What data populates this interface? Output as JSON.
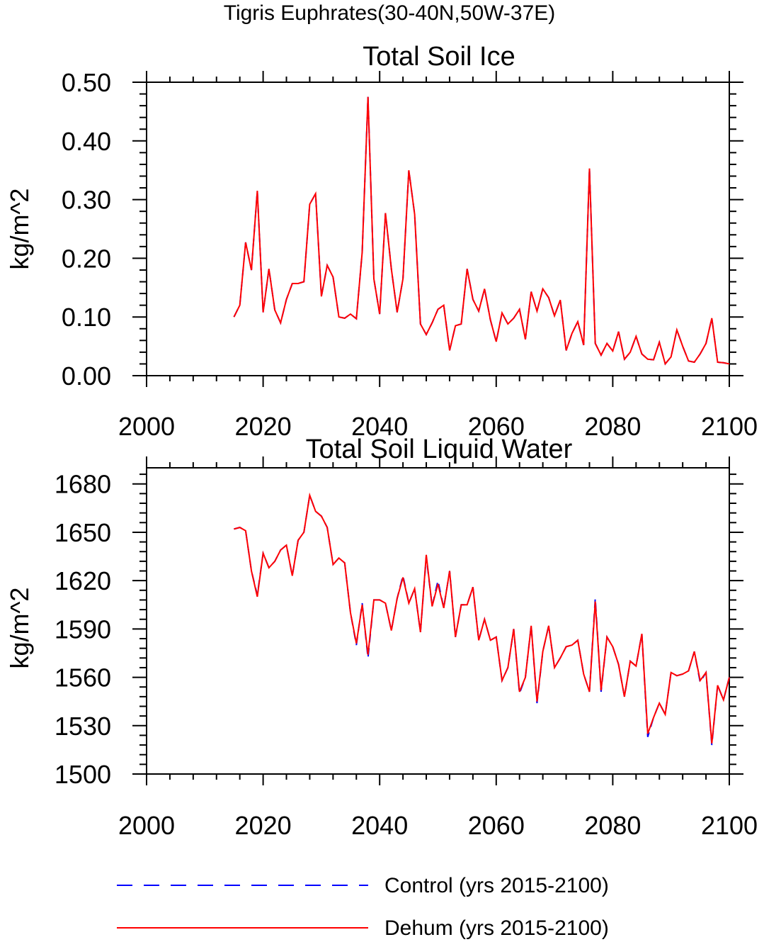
{
  "suptitle": "Tigris Euphrates(30-40N,50W-37E)",
  "chart_data": [
    {
      "type": "line",
      "title": "Total Soil Ice",
      "xlabel": "",
      "ylabel": "kg/m^2",
      "xlim": [
        2000,
        2100
      ],
      "ylim": [
        0.0,
        0.5
      ],
      "x_ticks": [
        "2000",
        "2020",
        "2040",
        "2060",
        "2080",
        "2100"
      ],
      "y_ticks": [
        "0.00",
        "0.10",
        "0.20",
        "0.30",
        "0.40",
        "0.50"
      ],
      "x": [
        2015,
        2016,
        2017,
        2018,
        2019,
        2020,
        2021,
        2022,
        2023,
        2024,
        2025,
        2026,
        2027,
        2028,
        2029,
        2030,
        2031,
        2032,
        2033,
        2034,
        2035,
        2036,
        2037,
        2038,
        2039,
        2040,
        2041,
        2042,
        2043,
        2044,
        2045,
        2046,
        2047,
        2048,
        2049,
        2050,
        2051,
        2052,
        2053,
        2054,
        2055,
        2056,
        2057,
        2058,
        2059,
        2060,
        2061,
        2062,
        2063,
        2064,
        2065,
        2066,
        2067,
        2068,
        2069,
        2070,
        2071,
        2072,
        2073,
        2074,
        2075,
        2076,
        2077,
        2078,
        2079,
        2080,
        2081,
        2082,
        2083,
        2084,
        2085,
        2086,
        2087,
        2088,
        2089,
        2090,
        2091,
        2092,
        2093,
        2094,
        2095,
        2096,
        2097,
        2098,
        2099,
        2100
      ],
      "series": [
        {
          "name": "Control (yrs 2015-2100)",
          "color": "#0000ff",
          "dash": "dashed",
          "values": [
            0.1,
            0.12,
            0.227,
            0.18,
            0.315,
            0.108,
            0.182,
            0.112,
            0.09,
            0.13,
            0.157,
            0.157,
            0.16,
            0.292,
            0.31,
            0.135,
            0.188,
            0.168,
            0.1,
            0.098,
            0.105,
            0.097,
            0.21,
            0.475,
            0.165,
            0.105,
            0.277,
            0.182,
            0.108,
            0.165,
            0.35,
            0.275,
            0.088,
            0.07,
            0.09,
            0.113,
            0.12,
            0.043,
            0.085,
            0.088,
            0.182,
            0.13,
            0.11,
            0.148,
            0.095,
            0.058,
            0.107,
            0.088,
            0.098,
            0.113,
            0.062,
            0.143,
            0.11,
            0.148,
            0.133,
            0.102,
            0.129,
            0.043,
            0.072,
            0.092,
            0.052,
            0.353,
            0.055,
            0.035,
            0.055,
            0.042,
            0.075,
            0.028,
            0.04,
            0.067,
            0.037,
            0.028,
            0.027,
            0.057,
            0.02,
            0.032,
            0.078,
            0.05,
            0.025,
            0.023,
            0.037,
            0.055,
            0.098,
            0.023,
            0.022,
            0.02
          ]
        },
        {
          "name": "Dehum (yrs 2015-2100)",
          "color": "#ff0000",
          "dash": "solid",
          "values": [
            0.1,
            0.12,
            0.227,
            0.18,
            0.315,
            0.108,
            0.182,
            0.112,
            0.09,
            0.13,
            0.157,
            0.157,
            0.16,
            0.292,
            0.31,
            0.135,
            0.188,
            0.168,
            0.1,
            0.098,
            0.105,
            0.097,
            0.21,
            0.475,
            0.165,
            0.105,
            0.277,
            0.182,
            0.108,
            0.165,
            0.35,
            0.275,
            0.088,
            0.07,
            0.09,
            0.113,
            0.12,
            0.043,
            0.085,
            0.088,
            0.182,
            0.13,
            0.11,
            0.148,
            0.095,
            0.058,
            0.107,
            0.088,
            0.098,
            0.113,
            0.062,
            0.143,
            0.11,
            0.148,
            0.133,
            0.102,
            0.129,
            0.043,
            0.072,
            0.092,
            0.052,
            0.353,
            0.055,
            0.035,
            0.055,
            0.042,
            0.075,
            0.028,
            0.04,
            0.067,
            0.037,
            0.028,
            0.027,
            0.057,
            0.02,
            0.032,
            0.078,
            0.05,
            0.025,
            0.023,
            0.037,
            0.055,
            0.098,
            0.023,
            0.022,
            0.02
          ]
        }
      ]
    },
    {
      "type": "line",
      "title": "Total Soil Liquid Water",
      "xlabel": "",
      "ylabel": "kg/m^2",
      "xlim": [
        2000,
        2100
      ],
      "ylim": [
        1500,
        1690
      ],
      "x_ticks": [
        "2000",
        "2020",
        "2040",
        "2060",
        "2080",
        "2100"
      ],
      "y_ticks": [
        "1500",
        "1530",
        "1560",
        "1590",
        "1620",
        "1650",
        "1680"
      ],
      "x": [
        2015,
        2016,
        2017,
        2018,
        2019,
        2020,
        2021,
        2022,
        2023,
        2024,
        2025,
        2026,
        2027,
        2028,
        2029,
        2030,
        2031,
        2032,
        2033,
        2034,
        2035,
        2036,
        2037,
        2038,
        2039,
        2040,
        2041,
        2042,
        2043,
        2044,
        2045,
        2046,
        2047,
        2048,
        2049,
        2050,
        2051,
        2052,
        2053,
        2054,
        2055,
        2056,
        2057,
        2058,
        2059,
        2060,
        2061,
        2062,
        2063,
        2064,
        2065,
        2066,
        2067,
        2068,
        2069,
        2070,
        2071,
        2072,
        2073,
        2074,
        2075,
        2076,
        2077,
        2078,
        2079,
        2080,
        2081,
        2082,
        2083,
        2084,
        2085,
        2086,
        2087,
        2088,
        2089,
        2090,
        2091,
        2092,
        2093,
        2094,
        2095,
        2096,
        2097,
        2098,
        2099,
        2100
      ],
      "series": [
        {
          "name": "Control (yrs 2015-2100)",
          "color": "#0000ff",
          "dash": "dashed",
          "values": [
            1652,
            1653,
            1651,
            1626,
            1611,
            1637,
            1628,
            1632,
            1639,
            1642,
            1623,
            1645,
            1650,
            1673,
            1663,
            1660,
            1653,
            1630,
            1634,
            1631,
            1600,
            1580,
            1606,
            1572,
            1608,
            1608,
            1606,
            1589,
            1609,
            1623,
            1606,
            1615,
            1588,
            1635,
            1604,
            1620,
            1603,
            1626,
            1585,
            1605,
            1605,
            1616,
            1583,
            1596,
            1583,
            1585,
            1558,
            1566,
            1590,
            1550,
            1560,
            1592,
            1544,
            1576,
            1592,
            1566,
            1572,
            1579,
            1580,
            1583,
            1562,
            1551,
            1609,
            1551,
            1585,
            1579,
            1568,
            1548,
            1570,
            1567,
            1587,
            1523,
            1535,
            1544,
            1537,
            1563,
            1561,
            1562,
            1564,
            1576,
            1557,
            1563,
            1518,
            1555,
            1546,
            1560
          ]
        },
        {
          "name": "Dehum (yrs 2015-2100)",
          "color": "#ff0000",
          "dash": "solid",
          "values": [
            1652,
            1653,
            1651,
            1626,
            1610,
            1637,
            1628,
            1632,
            1639,
            1642,
            1623,
            1645,
            1650,
            1673,
            1663,
            1660,
            1653,
            1630,
            1634,
            1631,
            1600,
            1581,
            1605,
            1574,
            1608,
            1608,
            1606,
            1589,
            1609,
            1622,
            1606,
            1615,
            1588,
            1636,
            1604,
            1618,
            1603,
            1626,
            1585,
            1605,
            1605,
            1616,
            1583,
            1596,
            1583,
            1585,
            1558,
            1566,
            1590,
            1551,
            1560,
            1592,
            1545,
            1576,
            1592,
            1566,
            1572,
            1579,
            1580,
            1583,
            1562,
            1551,
            1607,
            1552,
            1585,
            1579,
            1568,
            1548,
            1570,
            1567,
            1587,
            1525,
            1535,
            1544,
            1537,
            1563,
            1561,
            1562,
            1564,
            1576,
            1558,
            1563,
            1519,
            1555,
            1546,
            1560
          ]
        }
      ]
    }
  ],
  "legend": [
    {
      "label": "Control (yrs 2015-2100)",
      "color": "#0000ff",
      "dash": "dashed"
    },
    {
      "label": "Dehum (yrs 2015-2100)",
      "color": "#ff0000",
      "dash": "solid"
    }
  ]
}
